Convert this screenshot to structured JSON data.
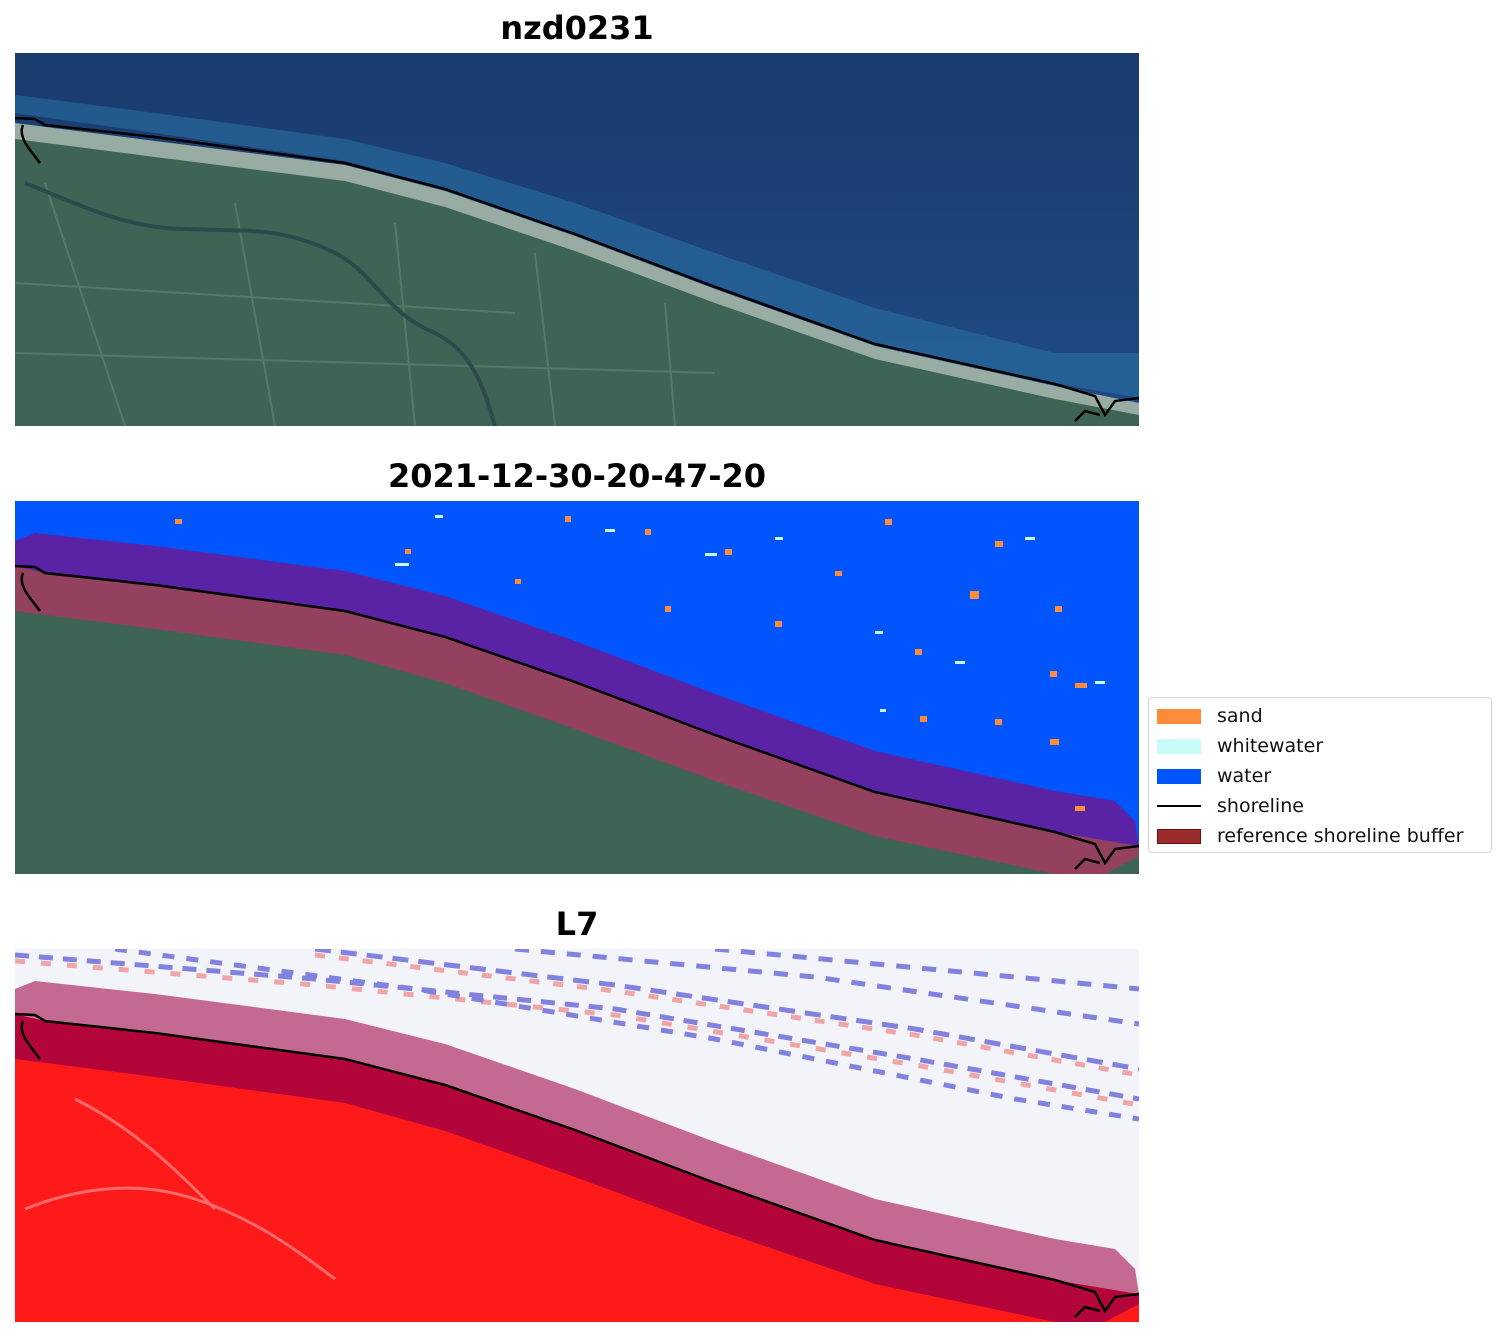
{
  "panels": [
    {
      "title": "nzd0231",
      "type": "rgb-satellite-image"
    },
    {
      "title": "2021-12-30-20-47-20",
      "type": "classified-image"
    },
    {
      "title": "L7",
      "type": "water-index-image"
    }
  ],
  "legend": {
    "items": [
      {
        "label": "sand",
        "color": "#ff8c3a",
        "kind": "patch"
      },
      {
        "label": "whitewater",
        "color": "#c8fcf9",
        "kind": "patch"
      },
      {
        "label": "water",
        "color": "#0055ff",
        "kind": "patch"
      },
      {
        "label": "shoreline",
        "color": "#000000",
        "kind": "line"
      },
      {
        "label": "reference shoreline buffer",
        "color": "#9b2c2c",
        "kind": "patch"
      }
    ]
  },
  "colors": {
    "ocean": "#1d4179",
    "land": "#3f6656",
    "water_class": "#0055ff",
    "buffer_on_water": "#5a22a4",
    "buffer_on_land": "#94405f",
    "index_land": "#ff1a1a",
    "buffer_dark": "#b3053a",
    "buffer_light": "#c46a92",
    "shoreline": "#000000"
  }
}
